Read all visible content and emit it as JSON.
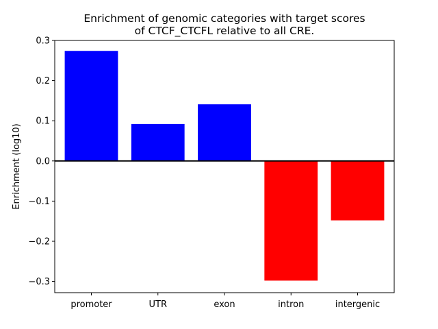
{
  "chart_data": {
    "type": "bar",
    "title_lines": [
      "Enrichment of genomic categories with target scores",
      "of CTCF_CTCFL relative to all CRE."
    ],
    "xlabel": "",
    "ylabel": "Enrichment (log10)",
    "categories": [
      "promoter",
      "UTR",
      "exon",
      "intron",
      "intergenic"
    ],
    "values": [
      0.274,
      0.092,
      0.141,
      -0.298,
      -0.148
    ],
    "ylim": [
      -0.328,
      0.3
    ],
    "yticks": [
      -0.3,
      -0.2,
      -0.1,
      0.0,
      0.1,
      0.2,
      0.3
    ],
    "ytick_labels": [
      "−0.3",
      "−0.2",
      "−0.1",
      "0.0",
      "0.1",
      "0.2",
      "0.3"
    ],
    "positive_color": "#0000ff",
    "negative_color": "#ff0000",
    "zero_line": true,
    "grid": false
  }
}
